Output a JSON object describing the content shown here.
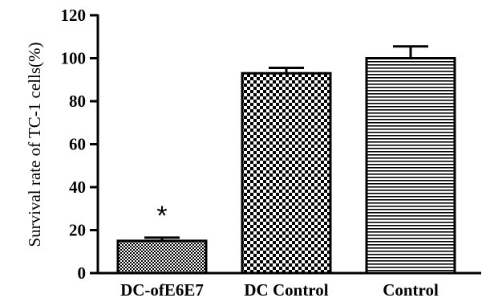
{
  "chart_data": {
    "type": "bar",
    "title": "",
    "xlabel": "",
    "ylabel": "Survival rate of TC-1 cells(%)",
    "ylim": [
      0,
      120
    ],
    "yticks": [
      0,
      20,
      40,
      60,
      80,
      100,
      120
    ],
    "yticks_text": [
      "0",
      "20",
      "40",
      "60",
      "80",
      "100",
      "120"
    ],
    "categories": [
      "DC-ofE6E7",
      "DC Control",
      "Control"
    ],
    "values": [
      15,
      93,
      100
    ],
    "errors": [
      1.5,
      2.5,
      5.5
    ],
    "fills": [
      "fine-checker",
      "large-checker",
      "horizontal-stripes"
    ],
    "annotations": [
      {
        "category": "DC-ofE6E7",
        "text": "*"
      }
    ],
    "grid": false,
    "legend": "none",
    "colors": {
      "bar_stroke": "#000000",
      "background": "#ffffff"
    }
  }
}
